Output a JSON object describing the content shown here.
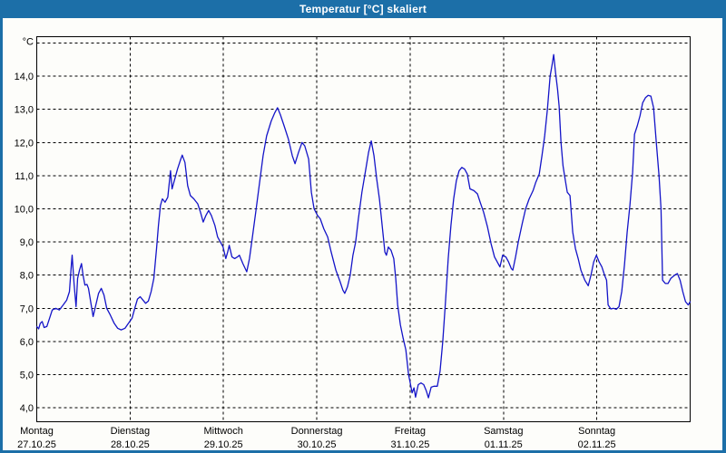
{
  "window": {
    "title": "Temperatur [°C] skaliert"
  },
  "colors": {
    "chrome": "#1c6fa8",
    "plot_background": "#fdfdfa",
    "grid": "#000000",
    "frame": "#000000",
    "series_line": "#1414c8",
    "label_text": "#000000",
    "title_text": "#ffffff"
  },
  "chart_data": {
    "type": "line",
    "title": "Temperatur [°C] skaliert",
    "grid": {
      "style": "dashed",
      "horizontal_step": 1,
      "vertical_step_hours": 24
    },
    "legend": "none",
    "y_axis": {
      "unit_label": "°C",
      "ylim": [
        3.6,
        15.2
      ],
      "ticks": [
        {
          "value": 4,
          "label": "4,0"
        },
        {
          "value": 5,
          "label": "5,0"
        },
        {
          "value": 6,
          "label": "6,0"
        },
        {
          "value": 7,
          "label": "7,0"
        },
        {
          "value": 8,
          "label": "8,0"
        },
        {
          "value": 9,
          "label": "9,0"
        },
        {
          "value": 10,
          "label": "10,0"
        },
        {
          "value": 11,
          "label": "11,0"
        },
        {
          "value": 12,
          "label": "12,0"
        },
        {
          "value": 13,
          "label": "13,0"
        },
        {
          "value": 14,
          "label": "14,0"
        },
        {
          "value": 15,
          "label": "°C"
        }
      ]
    },
    "x_axis": {
      "hours_range": [
        0,
        168
      ],
      "days": [
        {
          "name": "Montag",
          "date": "27.10.25"
        },
        {
          "name": "Dienstag",
          "date": "28.10.25"
        },
        {
          "name": "Mittwoch",
          "date": "29.10.25"
        },
        {
          "name": "Donnerstag",
          "date": "30.10.25"
        },
        {
          "name": "Freitag",
          "date": "31.10.25"
        },
        {
          "name": "Samstag",
          "date": "01.11.25"
        },
        {
          "name": "Sonntag",
          "date": "02.11.25"
        }
      ]
    },
    "series": [
      {
        "name": "Temperatur [°C]",
        "color": "#1414c8",
        "points": [
          [
            0,
            6.45
          ],
          [
            0.5,
            6.38
          ],
          [
            0.9,
            6.55
          ],
          [
            1.4,
            6.6
          ],
          [
            1.9,
            6.42
          ],
          [
            2.6,
            6.45
          ],
          [
            3.3,
            6.7
          ],
          [
            4,
            6.95
          ],
          [
            4.9,
            7
          ],
          [
            5.8,
            6.95
          ],
          [
            6.8,
            7.1
          ],
          [
            7.7,
            7.25
          ],
          [
            8.4,
            7.5
          ],
          [
            8.9,
            8.3
          ],
          [
            9.1,
            8.6
          ],
          [
            9.6,
            7.75
          ],
          [
            10.1,
            7.05
          ],
          [
            10.5,
            7.9
          ],
          [
            11,
            8.15
          ],
          [
            11.5,
            8.35
          ],
          [
            11.9,
            8
          ],
          [
            12.4,
            7.7
          ],
          [
            12.9,
            7.72
          ],
          [
            13.3,
            7.6
          ],
          [
            14,
            7.1
          ],
          [
            14.5,
            6.75
          ],
          [
            15.2,
            7.1
          ],
          [
            15.9,
            7.45
          ],
          [
            16.6,
            7.6
          ],
          [
            17.3,
            7.4
          ],
          [
            18,
            7
          ],
          [
            18.9,
            6.8
          ],
          [
            19.9,
            6.55
          ],
          [
            20.8,
            6.4
          ],
          [
            21.7,
            6.35
          ],
          [
            22.7,
            6.4
          ],
          [
            23.6,
            6.55
          ],
          [
            24.5,
            6.7
          ],
          [
            25.2,
            7
          ],
          [
            25.9,
            7.28
          ],
          [
            26.6,
            7.35
          ],
          [
            27.3,
            7.25
          ],
          [
            28,
            7.15
          ],
          [
            28.7,
            7.22
          ],
          [
            29.4,
            7.5
          ],
          [
            30.1,
            7.9
          ],
          [
            30.8,
            8.8
          ],
          [
            31.3,
            9.5
          ],
          [
            31.8,
            10.1
          ],
          [
            32.3,
            10.3
          ],
          [
            33,
            10.2
          ],
          [
            33.7,
            10.35
          ],
          [
            34.4,
            11.15
          ],
          [
            34.8,
            10.6
          ],
          [
            35.5,
            10.9
          ],
          [
            36.2,
            11.2
          ],
          [
            36.9,
            11.45
          ],
          [
            37.4,
            11.62
          ],
          [
            38.1,
            11.4
          ],
          [
            38.8,
            10.7
          ],
          [
            39.5,
            10.4
          ],
          [
            40.4,
            10.3
          ],
          [
            41.4,
            10.15
          ],
          [
            42.1,
            9.9
          ],
          [
            42.8,
            9.6
          ],
          [
            43.5,
            9.8
          ],
          [
            44.2,
            9.95
          ],
          [
            44.9,
            9.8
          ],
          [
            45.8,
            9.5
          ],
          [
            46.5,
            9.15
          ],
          [
            47.2,
            9
          ],
          [
            47.9,
            8.85
          ],
          [
            48.6,
            8.5
          ],
          [
            49.1,
            8.7
          ],
          [
            49.5,
            8.9
          ],
          [
            50.2,
            8.55
          ],
          [
            50.9,
            8.5
          ],
          [
            51.6,
            8.55
          ],
          [
            52.1,
            8.6
          ],
          [
            53,
            8.35
          ],
          [
            54,
            8.1
          ],
          [
            54.7,
            8.5
          ],
          [
            55.4,
            9.1
          ],
          [
            56.3,
            9.9
          ],
          [
            57.2,
            10.7
          ],
          [
            58.2,
            11.6
          ],
          [
            59.1,
            12.2
          ],
          [
            60.3,
            12.65
          ],
          [
            61.2,
            12.9
          ],
          [
            61.9,
            13.05
          ],
          [
            62.6,
            12.85
          ],
          [
            63.6,
            12.5
          ],
          [
            64.7,
            12.1
          ],
          [
            65.7,
            11.6
          ],
          [
            66.4,
            11.36
          ],
          [
            67.3,
            11.7
          ],
          [
            68.2,
            12
          ],
          [
            68.9,
            11.9
          ],
          [
            69.9,
            11.5
          ],
          [
            70.6,
            10.5
          ],
          [
            71.3,
            10
          ],
          [
            72.2,
            9.8
          ],
          [
            72.9,
            9.7
          ],
          [
            73.8,
            9.4
          ],
          [
            74.8,
            9.15
          ],
          [
            75.7,
            8.7
          ],
          [
            76.9,
            8.15
          ],
          [
            78,
            7.8
          ],
          [
            78.7,
            7.55
          ],
          [
            79.2,
            7.45
          ],
          [
            79.9,
            7.65
          ],
          [
            80.6,
            8
          ],
          [
            81.3,
            8.6
          ],
          [
            82,
            9
          ],
          [
            82.7,
            9.7
          ],
          [
            83.6,
            10.5
          ],
          [
            84.6,
            11.2
          ],
          [
            85.3,
            11.7
          ],
          [
            86,
            12.05
          ],
          [
            86.7,
            11.6
          ],
          [
            87.4,
            10.9
          ],
          [
            88.1,
            10.3
          ],
          [
            88.8,
            9.5
          ],
          [
            89.5,
            8.7
          ],
          [
            89.9,
            8.6
          ],
          [
            90.4,
            8.85
          ],
          [
            91.1,
            8.75
          ],
          [
            91.8,
            8.5
          ],
          [
            92.3,
            7.9
          ],
          [
            92.8,
            7.1
          ],
          [
            93.5,
            6.5
          ],
          [
            94.2,
            6.1
          ],
          [
            94.9,
            5.75
          ],
          [
            95.6,
            5
          ],
          [
            96,
            4.77
          ],
          [
            96.5,
            4.45
          ],
          [
            97,
            4.6
          ],
          [
            97.4,
            4.32
          ],
          [
            98.1,
            4.7
          ],
          [
            98.8,
            4.75
          ],
          [
            99.5,
            4.7
          ],
          [
            100.2,
            4.5
          ],
          [
            100.7,
            4.3
          ],
          [
            101.4,
            4.62
          ],
          [
            102.1,
            4.65
          ],
          [
            103,
            4.65
          ],
          [
            103.7,
            5.1
          ],
          [
            104.4,
            6
          ],
          [
            105.1,
            7.2
          ],
          [
            105.8,
            8.5
          ],
          [
            106.5,
            9.5
          ],
          [
            107.2,
            10.3
          ],
          [
            107.9,
            10.85
          ],
          [
            108.6,
            11.15
          ],
          [
            109.3,
            11.25
          ],
          [
            110,
            11.2
          ],
          [
            110.7,
            11.05
          ],
          [
            111.4,
            10.6
          ],
          [
            112.4,
            10.55
          ],
          [
            113.3,
            10.45
          ],
          [
            114,
            10.2
          ],
          [
            114.9,
            9.9
          ],
          [
            115.9,
            9.45
          ],
          [
            116.8,
            8.95
          ],
          [
            117.7,
            8.55
          ],
          [
            118.4,
            8.4
          ],
          [
            119.1,
            8.25
          ],
          [
            119.8,
            8.6
          ],
          [
            120.6,
            8.55
          ],
          [
            121.3,
            8.4
          ],
          [
            122,
            8.2
          ],
          [
            122.4,
            8.15
          ],
          [
            123.1,
            8.55
          ],
          [
            123.8,
            9
          ],
          [
            124.8,
            9.55
          ],
          [
            125.7,
            10
          ],
          [
            126.6,
            10.3
          ],
          [
            127.6,
            10.55
          ],
          [
            128.3,
            10.8
          ],
          [
            129.2,
            11.05
          ],
          [
            129.9,
            11.6
          ],
          [
            130.6,
            12.2
          ],
          [
            131.3,
            13
          ],
          [
            132,
            14
          ],
          [
            132.5,
            14.35
          ],
          [
            132.9,
            14.65
          ],
          [
            133.4,
            14.1
          ],
          [
            133.9,
            13.6
          ],
          [
            134.3,
            13.1
          ],
          [
            134.8,
            12
          ],
          [
            135.3,
            11.3
          ],
          [
            135.7,
            11
          ],
          [
            136.4,
            10.5
          ],
          [
            137.1,
            10.4
          ],
          [
            137.8,
            9.3
          ],
          [
            138.5,
            8.8
          ],
          [
            139.2,
            8.5
          ],
          [
            139.9,
            8.15
          ],
          [
            140.9,
            7.85
          ],
          [
            141.8,
            7.68
          ],
          [
            142.5,
            8
          ],
          [
            143.2,
            8.4
          ],
          [
            143.9,
            8.6
          ],
          [
            144.6,
            8.4
          ],
          [
            145.3,
            8.25
          ],
          [
            146,
            8
          ],
          [
            146.5,
            7.85
          ],
          [
            146.9,
            7.1
          ],
          [
            147.6,
            6.98
          ],
          [
            148.3,
            7
          ],
          [
            149,
            6.97
          ],
          [
            149.7,
            7.05
          ],
          [
            150.4,
            7.5
          ],
          [
            151.1,
            8.3
          ],
          [
            151.8,
            9.3
          ],
          [
            152.5,
            10.1
          ],
          [
            153.2,
            11.1
          ],
          [
            153.7,
            12.25
          ],
          [
            154.4,
            12.5
          ],
          [
            155.1,
            12.8
          ],
          [
            155.8,
            13.2
          ],
          [
            156.5,
            13.35
          ],
          [
            157.2,
            13.42
          ],
          [
            157.9,
            13.4
          ],
          [
            158.6,
            13.05
          ],
          [
            159.3,
            12
          ],
          [
            160,
            11
          ],
          [
            160.5,
            10
          ],
          [
            160.7,
            9
          ],
          [
            160.9,
            7.85
          ],
          [
            161.6,
            7.75
          ],
          [
            162.3,
            7.75
          ],
          [
            163,
            7.9
          ],
          [
            164,
            8
          ],
          [
            164.7,
            8.05
          ],
          [
            165.4,
            7.85
          ],
          [
            166.1,
            7.5
          ],
          [
            166.8,
            7.2
          ],
          [
            167.5,
            7.1
          ],
          [
            168,
            7.2
          ]
        ]
      }
    ]
  }
}
